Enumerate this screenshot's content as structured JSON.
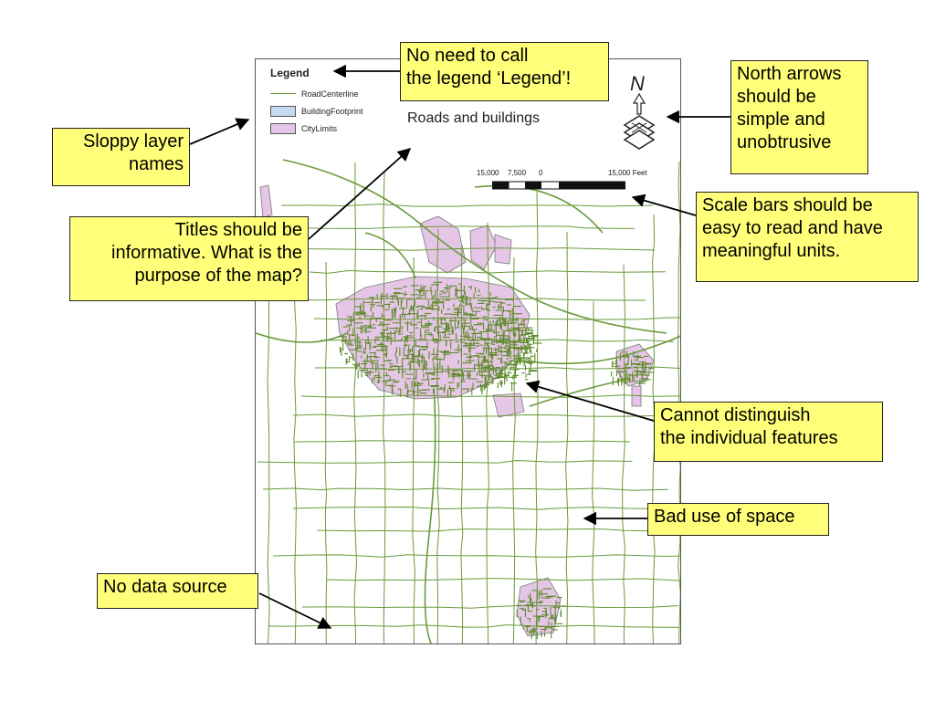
{
  "map": {
    "title": "Roads and buildings",
    "legend": {
      "title": "Legend",
      "items": [
        {
          "label": "RoadCenterline",
          "symbol": "line",
          "color": "#6a9a3a"
        },
        {
          "label": "BuildingFootprint",
          "symbol": "fill",
          "color": "#c6d9f0",
          "border": "#555555"
        },
        {
          "label": "CityLimits",
          "symbol": "fill",
          "color": "#e6c6e6",
          "border": "#555555"
        }
      ]
    },
    "north_arrow": {
      "label": "N"
    },
    "scale_bar": {
      "labels": [
        "15,000",
        "7,500",
        "0",
        "15,000 Feet"
      ]
    },
    "colors": {
      "road": "#6a9a3a",
      "city": "#e6c6e6",
      "city_border": "#7a7a7a",
      "dense": "#5e8a2a"
    }
  },
  "callouts": [
    {
      "id": "legend",
      "lines": [
        "No need to call",
        "the legend ‘Legend’!"
      ]
    },
    {
      "id": "north",
      "lines": [
        "North arrows",
        "should be",
        "simple and",
        "unobtrusive"
      ]
    },
    {
      "id": "layers",
      "lines": [
        "Sloppy layer",
        "names"
      ]
    },
    {
      "id": "title",
      "lines": [
        "Titles should be",
        "informative. What is the",
        "purpose of the map?"
      ]
    },
    {
      "id": "scale",
      "lines": [
        "Scale bars should be",
        "easy to read and have",
        "meaningful units."
      ]
    },
    {
      "id": "features",
      "lines": [
        "Cannot distinguish",
        "the individual features"
      ]
    },
    {
      "id": "space",
      "lines": [
        "Bad use of space"
      ]
    },
    {
      "id": "source",
      "lines": [
        "No data source"
      ]
    }
  ],
  "callout_colors": {
    "fill": "#ffff7a",
    "border": "#222222",
    "arrow": "#000000"
  }
}
